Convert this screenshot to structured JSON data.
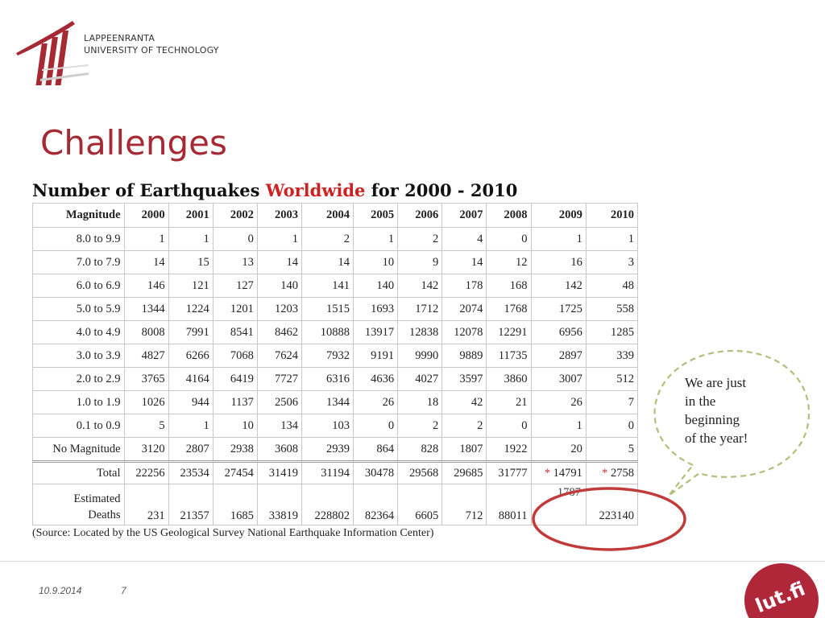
{
  "header": {
    "university_line1": "LAPPEENRANTA",
    "university_line2": "UNIVERSITY OF TECHNOLOGY"
  },
  "slide": {
    "title": "Challenges"
  },
  "table": {
    "title_part1": "Number of Earthquakes ",
    "title_highlight": "Worldwide",
    "title_part2": " for 2000 - 2010",
    "highlight_color": "#cc2222",
    "columns": [
      "Magnitude",
      "2000",
      "2001",
      "2002",
      "2003",
      "2004",
      "2005",
      "2006",
      "2007",
      "2008",
      "2009",
      "2010"
    ],
    "rows": [
      {
        "label": "8.0 to 9.9",
        "values": [
          "1",
          "1",
          "0",
          "1",
          "2",
          "1",
          "2",
          "4",
          "0",
          "1",
          "1"
        ]
      },
      {
        "label": "7.0 to 7.9",
        "values": [
          "14",
          "15",
          "13",
          "14",
          "14",
          "10",
          "9",
          "14",
          "12",
          "16",
          "3"
        ]
      },
      {
        "label": "6.0 to 6.9",
        "values": [
          "146",
          "121",
          "127",
          "140",
          "141",
          "140",
          "142",
          "178",
          "168",
          "142",
          "48"
        ]
      },
      {
        "label": "5.0 to 5.9",
        "values": [
          "1344",
          "1224",
          "1201",
          "1203",
          "1515",
          "1693",
          "1712",
          "2074",
          "1768",
          "1725",
          "558"
        ]
      },
      {
        "label": "4.0 to 4.9",
        "values": [
          "8008",
          "7991",
          "8541",
          "8462",
          "10888",
          "13917",
          "12838",
          "12078",
          "12291",
          "6956",
          "1285"
        ]
      },
      {
        "label": "3.0 to 3.9",
        "values": [
          "4827",
          "6266",
          "7068",
          "7624",
          "7932",
          "9191",
          "9990",
          "9889",
          "11735",
          "2897",
          "339"
        ]
      },
      {
        "label": "2.0 to 2.9",
        "values": [
          "3765",
          "4164",
          "6419",
          "7727",
          "6316",
          "4636",
          "4027",
          "3597",
          "3860",
          "3007",
          "512"
        ]
      },
      {
        "label": "1.0 to 1.9",
        "values": [
          "1026",
          "944",
          "1137",
          "2506",
          "1344",
          "26",
          "18",
          "42",
          "21",
          "26",
          "7"
        ]
      },
      {
        "label": "0.1 to 0.9",
        "values": [
          "5",
          "1",
          "10",
          "134",
          "103",
          "0",
          "2",
          "2",
          "0",
          "1",
          "0"
        ]
      },
      {
        "label": "No Magnitude",
        "values": [
          "3120",
          "2807",
          "2938",
          "3608",
          "2939",
          "864",
          "828",
          "1807",
          "1922",
          "20",
          "5"
        ]
      }
    ],
    "total": {
      "label": "Total",
      "values": [
        "22256",
        "23534",
        "27454",
        "31419",
        "31194",
        "30478",
        "29568",
        "29685",
        "31777",
        "14791",
        "2758"
      ],
      "asterisk": "*"
    },
    "deaths": {
      "label_line1": "Estimated",
      "label_line2": "Deaths",
      "values": [
        "231",
        "21357",
        "1685",
        "33819",
        "228802",
        "82364",
        "6605",
        "712",
        "88011",
        "",
        "223140"
      ],
      "value_2009": "1787"
    },
    "source": "(Source: Located by the US  Geological Survey National Earthquake Information Center)"
  },
  "callout": {
    "line1": "We are just",
    "line2": "in the",
    "line3": "beginning",
    "line4": "of the year!"
  },
  "footer": {
    "date": "10.9.2014",
    "page": "7",
    "badge": "lut.fi"
  },
  "colors": {
    "title": "#a52a33",
    "ellipse": "#c23b3b",
    "bubble_dash": "#b5bd7a",
    "badge": "#b0273a"
  }
}
